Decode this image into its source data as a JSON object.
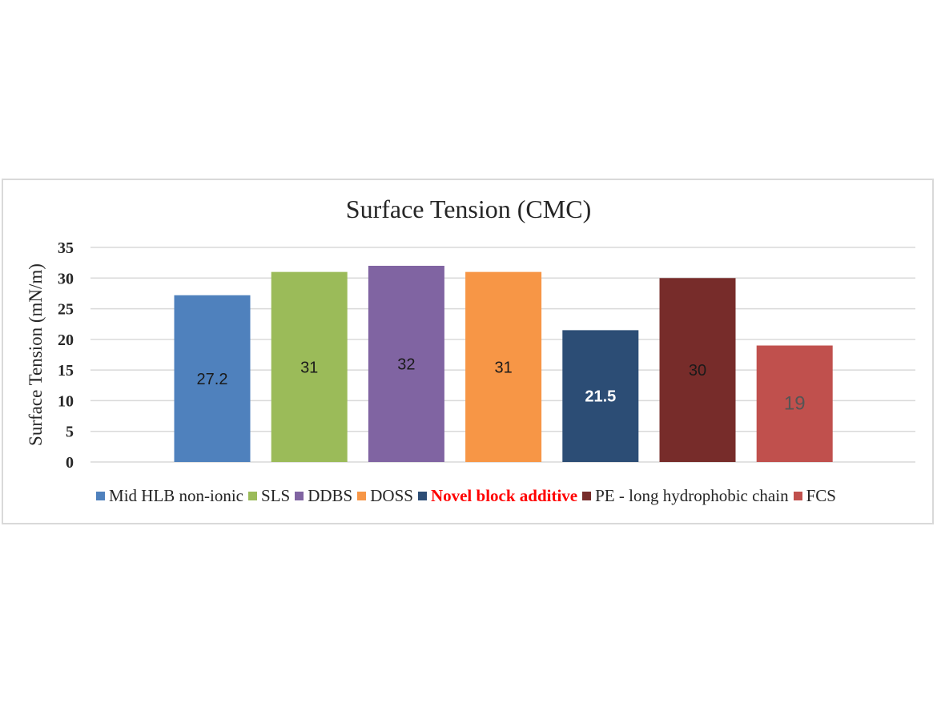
{
  "chart_data": {
    "type": "bar",
    "title": "Surface Tension (CMC)",
    "ylabel": "Surface Tension (mN/m)",
    "xlabel": "",
    "ylim": [
      0,
      35
    ],
    "yticks": [
      "0",
      "5",
      "10",
      "15",
      "20",
      "25",
      "30",
      "35"
    ],
    "grid": true,
    "legend_placement": "bottom",
    "categories": [
      "Mid HLB non-ionic",
      "SLS",
      "DDBS",
      "DOSS",
      "Novel block additive",
      "PE - long hydrophobic chain",
      "FCS"
    ],
    "values": [
      27.2,
      31,
      32,
      31,
      21.5,
      30,
      19
    ],
    "data_labels": [
      "27.2",
      "31",
      "32",
      "31",
      "21.5",
      "30",
      "19"
    ],
    "colors": [
      "#4f81bd",
      "#9bbb59",
      "#8064a2",
      "#f79646",
      "#2c4d75",
      "#772c2a",
      "#c0504d"
    ],
    "label_colors": [
      "#1a1a1a",
      "#1a1a1a",
      "#1a1a1a",
      "#1a1a1a",
      "#ffffff",
      "#1a1a1a",
      "#555555"
    ],
    "highlighted_category": "Novel block additive",
    "highlight_color": "#ff0000"
  }
}
